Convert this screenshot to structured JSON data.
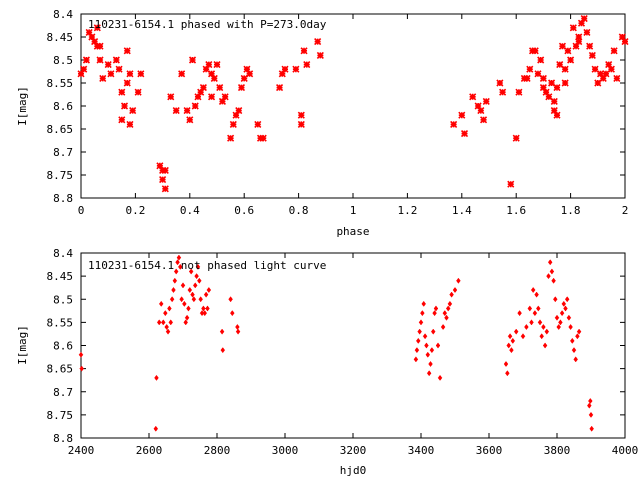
{
  "accent_color": "#ff0000",
  "axis_color": "#000000",
  "chart_data": [
    {
      "type": "scatter",
      "title": "110231-6154.1 phased with P=273.0day",
      "xlabel": "phase",
      "ylabel": "I[mag]",
      "xlim": [
        0,
        2
      ],
      "ylim": [
        8.8,
        8.4
      ],
      "y_inverted": true,
      "xticks": [
        "0",
        "0.2",
        "0.4",
        "0.6",
        "0.8",
        "1",
        "1.2",
        "1.4",
        "1.6",
        "1.8",
        "2"
      ],
      "yticks": [
        "8.4",
        "8.45",
        "8.5",
        "8.55",
        "8.6",
        "8.65",
        "8.7",
        "8.75",
        "8.8"
      ],
      "marker": "asterisk",
      "color": "#ff0000",
      "points": [
        [
          0.0,
          8.53
        ],
        [
          0.01,
          8.52
        ],
        [
          0.02,
          8.5
        ],
        [
          0.03,
          8.44
        ],
        [
          0.04,
          8.45
        ],
        [
          0.05,
          8.46
        ],
        [
          0.06,
          8.43
        ],
        [
          0.06,
          8.47
        ],
        [
          0.07,
          8.47
        ],
        [
          0.08,
          8.54
        ],
        [
          0.07,
          8.5
        ],
        [
          0.1,
          8.51
        ],
        [
          0.11,
          8.53
        ],
        [
          0.13,
          8.5
        ],
        [
          0.14,
          8.52
        ],
        [
          0.15,
          8.57
        ],
        [
          0.16,
          8.6
        ],
        [
          0.17,
          8.48
        ],
        [
          0.17,
          8.55
        ],
        [
          0.15,
          8.63
        ],
        [
          0.18,
          8.64
        ],
        [
          0.19,
          8.61
        ],
        [
          0.22,
          8.53
        ],
        [
          0.21,
          8.57
        ],
        [
          0.18,
          8.53
        ],
        [
          0.29,
          8.73
        ],
        [
          0.3,
          8.74
        ],
        [
          0.31,
          8.74
        ],
        [
          0.3,
          8.76
        ],
        [
          0.31,
          8.78
        ],
        [
          0.33,
          8.58
        ],
        [
          0.35,
          8.61
        ],
        [
          0.37,
          8.53
        ],
        [
          0.39,
          8.61
        ],
        [
          0.4,
          8.63
        ],
        [
          0.41,
          8.5
        ],
        [
          0.42,
          8.6
        ],
        [
          0.43,
          8.58
        ],
        [
          0.44,
          8.57
        ],
        [
          0.45,
          8.56
        ],
        [
          0.46,
          8.52
        ],
        [
          0.47,
          8.51
        ],
        [
          0.48,
          8.53
        ],
        [
          0.48,
          8.58
        ],
        [
          0.49,
          8.54
        ],
        [
          0.5,
          8.51
        ],
        [
          0.51,
          8.56
        ],
        [
          0.52,
          8.59
        ],
        [
          0.53,
          8.58
        ],
        [
          0.55,
          8.67
        ],
        [
          0.56,
          8.64
        ],
        [
          0.57,
          8.62
        ],
        [
          0.58,
          8.61
        ],
        [
          0.59,
          8.56
        ],
        [
          0.6,
          8.54
        ],
        [
          0.61,
          8.52
        ],
        [
          0.62,
          8.53
        ],
        [
          0.65,
          8.64
        ],
        [
          0.66,
          8.67
        ],
        [
          0.67,
          8.67
        ],
        [
          0.73,
          8.56
        ],
        [
          0.74,
          8.53
        ],
        [
          0.75,
          8.52
        ],
        [
          0.79,
          8.52
        ],
        [
          0.81,
          8.64
        ],
        [
          0.81,
          8.62
        ],
        [
          0.82,
          8.48
        ],
        [
          0.83,
          8.51
        ],
        [
          0.87,
          8.46
        ],
        [
          0.88,
          8.49
        ],
        [
          1.37,
          8.64
        ],
        [
          1.4,
          8.62
        ],
        [
          1.41,
          8.66
        ],
        [
          1.44,
          8.58
        ],
        [
          1.46,
          8.6
        ],
        [
          1.47,
          8.61
        ],
        [
          1.48,
          8.63
        ],
        [
          1.49,
          8.59
        ],
        [
          1.54,
          8.55
        ],
        [
          1.55,
          8.57
        ],
        [
          1.58,
          8.77
        ],
        [
          1.6,
          8.67
        ],
        [
          1.61,
          8.57
        ],
        [
          1.63,
          8.54
        ],
        [
          1.64,
          8.54
        ],
        [
          1.65,
          8.52
        ],
        [
          1.66,
          8.48
        ],
        [
          1.67,
          8.48
        ],
        [
          1.68,
          8.53
        ],
        [
          1.69,
          8.5
        ],
        [
          1.7,
          8.54
        ],
        [
          1.7,
          8.56
        ],
        [
          1.71,
          8.57
        ],
        [
          1.72,
          8.58
        ],
        [
          1.73,
          8.55
        ],
        [
          1.74,
          8.59
        ],
        [
          1.74,
          8.61
        ],
        [
          1.75,
          8.62
        ],
        [
          1.75,
          8.56
        ],
        [
          1.76,
          8.51
        ],
        [
          1.77,
          8.47
        ],
        [
          1.78,
          8.52
        ],
        [
          1.78,
          8.55
        ],
        [
          1.79,
          8.48
        ],
        [
          1.8,
          8.5
        ],
        [
          1.81,
          8.43
        ],
        [
          1.82,
          8.47
        ],
        [
          1.83,
          8.46
        ],
        [
          1.83,
          8.45
        ],
        [
          1.84,
          8.42
        ],
        [
          1.85,
          8.41
        ],
        [
          1.86,
          8.44
        ],
        [
          1.87,
          8.47
        ],
        [
          1.88,
          8.49
        ],
        [
          1.89,
          8.52
        ],
        [
          1.9,
          8.55
        ],
        [
          1.91,
          8.53
        ],
        [
          1.92,
          8.54
        ],
        [
          1.93,
          8.53
        ],
        [
          1.94,
          8.51
        ],
        [
          1.95,
          8.52
        ],
        [
          1.96,
          8.48
        ],
        [
          1.97,
          8.54
        ],
        [
          1.99,
          8.45
        ],
        [
          2.0,
          8.46
        ]
      ]
    },
    {
      "type": "scatter",
      "title": "110231-6154.1 not phased light curve",
      "xlabel": "hjd0",
      "ylabel": "I[mag]",
      "xlim": [
        2400,
        4000
      ],
      "ylim": [
        8.8,
        8.4
      ],
      "y_inverted": true,
      "xticks": [
        "2400",
        "2600",
        "2800",
        "3000",
        "3200",
        "3400",
        "3600",
        "3800",
        "4000"
      ],
      "yticks": [
        "8.4",
        "8.45",
        "8.5",
        "8.55",
        "8.6",
        "8.65",
        "8.7",
        "8.75",
        "8.8"
      ],
      "marker": "diamond",
      "color": "#ff0000",
      "points": [
        [
          2400,
          8.62
        ],
        [
          2402,
          8.65
        ],
        [
          2620,
          8.78
        ],
        [
          2622,
          8.67
        ],
        [
          2630,
          8.55
        ],
        [
          2636,
          8.51
        ],
        [
          2642,
          8.55
        ],
        [
          2648,
          8.53
        ],
        [
          2652,
          8.56
        ],
        [
          2656,
          8.57
        ],
        [
          2660,
          8.52
        ],
        [
          2664,
          8.55
        ],
        [
          2668,
          8.5
        ],
        [
          2672,
          8.48
        ],
        [
          2676,
          8.46
        ],
        [
          2680,
          8.44
        ],
        [
          2684,
          8.42
        ],
        [
          2688,
          8.41
        ],
        [
          2692,
          8.43
        ],
        [
          2696,
          8.5
        ],
        [
          2700,
          8.47
        ],
        [
          2704,
          8.51
        ],
        [
          2708,
          8.55
        ],
        [
          2712,
          8.54
        ],
        [
          2716,
          8.52
        ],
        [
          2720,
          8.48
        ],
        [
          2724,
          8.44
        ],
        [
          2728,
          8.49
        ],
        [
          2732,
          8.5
        ],
        [
          2736,
          8.47
        ],
        [
          2740,
          8.45
        ],
        [
          2744,
          8.43
        ],
        [
          2748,
          8.46
        ],
        [
          2752,
          8.5
        ],
        [
          2756,
          8.53
        ],
        [
          2760,
          8.52
        ],
        [
          2764,
          8.53
        ],
        [
          2768,
          8.49
        ],
        [
          2772,
          8.52
        ],
        [
          2776,
          8.48
        ],
        [
          2815,
          8.57
        ],
        [
          2817,
          8.61
        ],
        [
          2840,
          8.5
        ],
        [
          2845,
          8.53
        ],
        [
          2860,
          8.56
        ],
        [
          2862,
          8.57
        ],
        [
          3385,
          8.63
        ],
        [
          3388,
          8.61
        ],
        [
          3392,
          8.59
        ],
        [
          3396,
          8.57
        ],
        [
          3400,
          8.55
        ],
        [
          3404,
          8.53
        ],
        [
          3408,
          8.51
        ],
        [
          3412,
          8.58
        ],
        [
          3416,
          8.6
        ],
        [
          3420,
          8.62
        ],
        [
          3424,
          8.66
        ],
        [
          3428,
          8.64
        ],
        [
          3432,
          8.61
        ],
        [
          3436,
          8.57
        ],
        [
          3440,
          8.53
        ],
        [
          3444,
          8.52
        ],
        [
          3450,
          8.6
        ],
        [
          3456,
          8.67
        ],
        [
          3465,
          8.56
        ],
        [
          3470,
          8.53
        ],
        [
          3475,
          8.54
        ],
        [
          3480,
          8.52
        ],
        [
          3485,
          8.51
        ],
        [
          3490,
          8.49
        ],
        [
          3500,
          8.48
        ],
        [
          3510,
          8.46
        ],
        [
          3650,
          8.64
        ],
        [
          3654,
          8.66
        ],
        [
          3658,
          8.6
        ],
        [
          3662,
          8.58
        ],
        [
          3666,
          8.61
        ],
        [
          3670,
          8.59
        ],
        [
          3680,
          8.57
        ],
        [
          3690,
          8.53
        ],
        [
          3700,
          8.58
        ],
        [
          3710,
          8.56
        ],
        [
          3720,
          8.52
        ],
        [
          3725,
          8.55
        ],
        [
          3730,
          8.48
        ],
        [
          3735,
          8.53
        ],
        [
          3740,
          8.49
        ],
        [
          3745,
          8.52
        ],
        [
          3750,
          8.55
        ],
        [
          3755,
          8.58
        ],
        [
          3760,
          8.56
        ],
        [
          3765,
          8.6
        ],
        [
          3770,
          8.57
        ],
        [
          3775,
          8.45
        ],
        [
          3780,
          8.42
        ],
        [
          3785,
          8.44
        ],
        [
          3790,
          8.46
        ],
        [
          3795,
          8.5
        ],
        [
          3800,
          8.54
        ],
        [
          3805,
          8.56
        ],
        [
          3810,
          8.55
        ],
        [
          3815,
          8.53
        ],
        [
          3820,
          8.51
        ],
        [
          3825,
          8.52
        ],
        [
          3830,
          8.5
        ],
        [
          3835,
          8.54
        ],
        [
          3840,
          8.56
        ],
        [
          3845,
          8.59
        ],
        [
          3850,
          8.61
        ],
        [
          3855,
          8.63
        ],
        [
          3860,
          8.58
        ],
        [
          3865,
          8.57
        ],
        [
          3895,
          8.73
        ],
        [
          3898,
          8.72
        ],
        [
          3900,
          8.75
        ],
        [
          3902,
          8.78
        ]
      ]
    }
  ]
}
